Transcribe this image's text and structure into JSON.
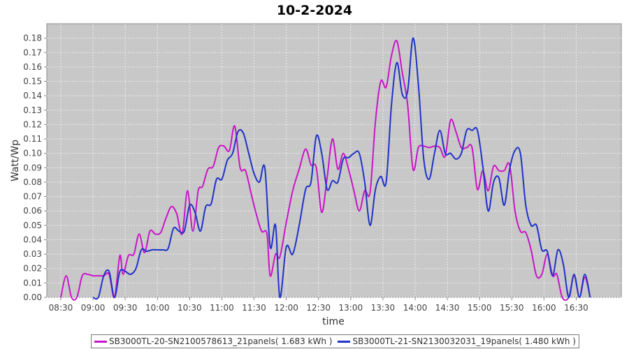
{
  "chart_data": {
    "type": "line",
    "title": "10-2-2024",
    "xlabel": "time",
    "ylabel": "Watt/Wp",
    "x_ticks": [
      "08:30",
      "09:00",
      "09:30",
      "10:00",
      "10:30",
      "11:00",
      "11:30",
      "12:00",
      "12:30",
      "13:00",
      "13:30",
      "14:00",
      "14:30",
      "15:00",
      "15:30",
      "16:00",
      "16:30"
    ],
    "y_ticks": [
      "0.00",
      "0.01",
      "0.02",
      "0.03",
      "0.04",
      "0.05",
      "0.06",
      "0.07",
      "0.08",
      "0.09",
      "0.10",
      "0.11",
      "0.12",
      "0.13",
      "0.14",
      "0.15",
      "0.16",
      "0.17",
      "0.18"
    ],
    "xlim": [
      "08:17",
      "17:12"
    ],
    "ylim": [
      0,
      0.19
    ],
    "grid": true,
    "legend_position": "bottom",
    "background_color": "#c8c8c8",
    "series": [
      {
        "name": "SB3000TL-20-SN2100578613_21panels( 1.683 kWh )",
        "color": "#c815c8",
        "points": [
          [
            "08:30",
            0.0
          ],
          [
            "08:35",
            0.015
          ],
          [
            "08:40",
            0.0
          ],
          [
            "08:45",
            0.0
          ],
          [
            "08:50",
            0.015
          ],
          [
            "08:55",
            0.016
          ],
          [
            "09:00",
            0.015
          ],
          [
            "09:05",
            0.015
          ],
          [
            "09:10",
            0.015
          ],
          [
            "09:15",
            0.016
          ],
          [
            "09:20",
            0.0
          ],
          [
            "09:25",
            0.029
          ],
          [
            "09:28",
            0.016
          ],
          [
            "09:33",
            0.029
          ],
          [
            "09:38",
            0.03
          ],
          [
            "09:43",
            0.044
          ],
          [
            "09:48",
            0.031
          ],
          [
            "09:53",
            0.046
          ],
          [
            "09:58",
            0.044
          ],
          [
            "10:03",
            0.045
          ],
          [
            "10:08",
            0.055
          ],
          [
            "10:13",
            0.063
          ],
          [
            "10:18",
            0.058
          ],
          [
            "10:23",
            0.044
          ],
          [
            "10:28",
            0.074
          ],
          [
            "10:33",
            0.046
          ],
          [
            "10:38",
            0.074
          ],
          [
            "10:42",
            0.077
          ],
          [
            "10:47",
            0.089
          ],
          [
            "10:52",
            0.091
          ],
          [
            "10:57",
            0.104
          ],
          [
            "11:02",
            0.105
          ],
          [
            "11:07",
            0.102
          ],
          [
            "11:12",
            0.119
          ],
          [
            "11:17",
            0.09
          ],
          [
            "11:22",
            0.088
          ],
          [
            "11:27",
            0.073
          ],
          [
            "11:32",
            0.058
          ],
          [
            "11:37",
            0.046
          ],
          [
            "11:42",
            0.044
          ],
          [
            "11:45",
            0.015
          ],
          [
            "11:50",
            0.03
          ],
          [
            "11:54",
            0.028
          ],
          [
            "12:00",
            0.052
          ],
          [
            "12:06",
            0.074
          ],
          [
            "12:12",
            0.089
          ],
          [
            "12:18",
            0.103
          ],
          [
            "12:23",
            0.092
          ],
          [
            "12:28",
            0.09
          ],
          [
            "12:33",
            0.059
          ],
          [
            "12:38",
            0.083
          ],
          [
            "12:43",
            0.11
          ],
          [
            "12:48",
            0.089
          ],
          [
            "12:53",
            0.1
          ],
          [
            "12:58",
            0.089
          ],
          [
            "13:03",
            0.074
          ],
          [
            "13:08",
            0.06
          ],
          [
            "13:13",
            0.074
          ],
          [
            "13:18",
            0.073
          ],
          [
            "13:23",
            0.122
          ],
          [
            "13:28",
            0.15
          ],
          [
            "13:33",
            0.146
          ],
          [
            "13:38",
            0.168
          ],
          [
            "13:43",
            0.178
          ],
          [
            "13:48",
            0.156
          ],
          [
            "13:53",
            0.134
          ],
          [
            "13:58",
            0.089
          ],
          [
            "14:03",
            0.104
          ],
          [
            "14:08",
            0.105
          ],
          [
            "14:13",
            0.104
          ],
          [
            "14:18",
            0.105
          ],
          [
            "14:23",
            0.104
          ],
          [
            "14:28",
            0.098
          ],
          [
            "14:33",
            0.123
          ],
          [
            "14:38",
            0.115
          ],
          [
            "14:43",
            0.104
          ],
          [
            "14:48",
            0.104
          ],
          [
            "14:53",
            0.104
          ],
          [
            "14:58",
            0.075
          ],
          [
            "15:03",
            0.088
          ],
          [
            "15:08",
            0.074
          ],
          [
            "15:13",
            0.091
          ],
          [
            "15:18",
            0.088
          ],
          [
            "15:23",
            0.088
          ],
          [
            "15:28",
            0.092
          ],
          [
            "15:33",
            0.06
          ],
          [
            "15:38",
            0.046
          ],
          [
            "15:43",
            0.045
          ],
          [
            "15:48",
            0.033
          ],
          [
            "15:53",
            0.015
          ],
          [
            "15:58",
            0.016
          ],
          [
            "16:03",
            0.03
          ],
          [
            "16:08",
            0.015
          ],
          [
            "16:12",
            0.016
          ],
          [
            "16:17",
            0.0
          ],
          [
            "16:23",
            0.0
          ],
          [
            "16:28",
            0.015
          ],
          [
            "16:33",
            0.0
          ],
          [
            "16:38",
            0.014
          ],
          [
            "16:43",
            0.0
          ]
        ]
      },
      {
        "name": "SB3000TL-21-SN2130032031_19panels( 1.480 kWh )",
        "color": "#1e32c8",
        "points": [
          [
            "09:00",
            0.0
          ],
          [
            "09:05",
            0.0
          ],
          [
            "09:10",
            0.015
          ],
          [
            "09:15",
            0.018
          ],
          [
            "09:20",
            0.0
          ],
          [
            "09:25",
            0.018
          ],
          [
            "09:30",
            0.018
          ],
          [
            "09:35",
            0.016
          ],
          [
            "09:40",
            0.02
          ],
          [
            "09:45",
            0.033
          ],
          [
            "09:50",
            0.032
          ],
          [
            "09:55",
            0.033
          ],
          [
            "10:00",
            0.033
          ],
          [
            "10:05",
            0.033
          ],
          [
            "10:10",
            0.034
          ],
          [
            "10:15",
            0.048
          ],
          [
            "10:20",
            0.046
          ],
          [
            "10:25",
            0.046
          ],
          [
            "10:30",
            0.064
          ],
          [
            "10:35",
            0.059
          ],
          [
            "10:40",
            0.046
          ],
          [
            "10:45",
            0.063
          ],
          [
            "10:50",
            0.065
          ],
          [
            "10:55",
            0.082
          ],
          [
            "11:00",
            0.082
          ],
          [
            "11:05",
            0.095
          ],
          [
            "11:10",
            0.1
          ],
          [
            "11:15",
            0.115
          ],
          [
            "11:20",
            0.114
          ],
          [
            "11:25",
            0.1
          ],
          [
            "11:30",
            0.086
          ],
          [
            "11:35",
            0.08
          ],
          [
            "11:40",
            0.09
          ],
          [
            "11:45",
            0.035
          ],
          [
            "11:50",
            0.05
          ],
          [
            "11:54",
            0.0
          ],
          [
            "12:00",
            0.035
          ],
          [
            "12:06",
            0.03
          ],
          [
            "12:12",
            0.05
          ],
          [
            "12:18",
            0.075
          ],
          [
            "12:23",
            0.08
          ],
          [
            "12:28",
            0.112
          ],
          [
            "12:33",
            0.1
          ],
          [
            "12:38",
            0.075
          ],
          [
            "12:43",
            0.081
          ],
          [
            "12:48",
            0.08
          ],
          [
            "12:53",
            0.096
          ],
          [
            "12:58",
            0.097
          ],
          [
            "13:03",
            0.1
          ],
          [
            "13:08",
            0.1
          ],
          [
            "13:13",
            0.08
          ],
          [
            "13:18",
            0.05
          ],
          [
            "13:23",
            0.075
          ],
          [
            "13:28",
            0.084
          ],
          [
            "13:33",
            0.08
          ],
          [
            "13:38",
            0.134
          ],
          [
            "13:43",
            0.163
          ],
          [
            "13:48",
            0.141
          ],
          [
            "13:53",
            0.143
          ],
          [
            "13:58",
            0.18
          ],
          [
            "14:03",
            0.148
          ],
          [
            "14:08",
            0.096
          ],
          [
            "14:13",
            0.082
          ],
          [
            "14:18",
            0.1
          ],
          [
            "14:23",
            0.116
          ],
          [
            "14:28",
            0.1
          ],
          [
            "14:33",
            0.1
          ],
          [
            "14:38",
            0.096
          ],
          [
            "14:43",
            0.1
          ],
          [
            "14:48",
            0.116
          ],
          [
            "14:53",
            0.116
          ],
          [
            "14:58",
            0.116
          ],
          [
            "15:03",
            0.091
          ],
          [
            "15:08",
            0.06
          ],
          [
            "15:13",
            0.08
          ],
          [
            "15:18",
            0.083
          ],
          [
            "15:23",
            0.064
          ],
          [
            "15:28",
            0.089
          ],
          [
            "15:33",
            0.102
          ],
          [
            "15:38",
            0.1
          ],
          [
            "15:43",
            0.064
          ],
          [
            "15:48",
            0.05
          ],
          [
            "15:53",
            0.05
          ],
          [
            "15:58",
            0.033
          ],
          [
            "16:03",
            0.032
          ],
          [
            "16:08",
            0.015
          ],
          [
            "16:13",
            0.033
          ],
          [
            "16:18",
            0.023
          ],
          [
            "16:23",
            0.0
          ],
          [
            "16:28",
            0.016
          ],
          [
            "16:33",
            0.0
          ],
          [
            "16:38",
            0.016
          ],
          [
            "16:43",
            0.0
          ]
        ]
      }
    ]
  }
}
